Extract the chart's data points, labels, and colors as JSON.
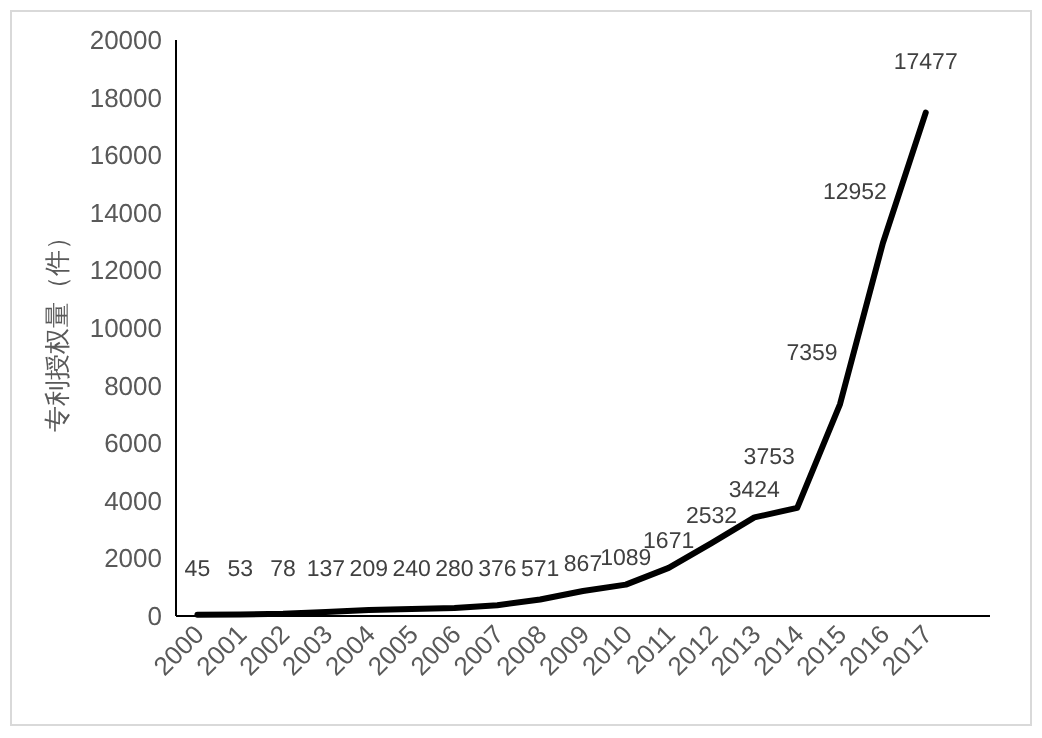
{
  "chart_data": {
    "type": "line",
    "ylabel": "专利授权量（件）",
    "categories": [
      "2000",
      "2001",
      "2002",
      "2003",
      "2004",
      "2005",
      "2006",
      "2007",
      "2008",
      "2009",
      "2010",
      "2011",
      "2012",
      "2013",
      "2014",
      "2015",
      "2016",
      "2017"
    ],
    "series": [
      {
        "color": "#000000",
        "values": [
          45,
          53,
          78,
          137,
          209,
          240,
          280,
          376,
          571,
          867,
          1089,
          1671,
          2532,
          3424,
          3753,
          7359,
          12952,
          17477
        ]
      }
    ],
    "ylim": [
      0,
      20000
    ],
    "yticks": [
      0,
      2000,
      4000,
      6000,
      8000,
      10000,
      12000,
      14000,
      16000,
      18000,
      20000
    ],
    "data_labels": true,
    "grid": false,
    "marker": "none",
    "line_style": "solid"
  }
}
